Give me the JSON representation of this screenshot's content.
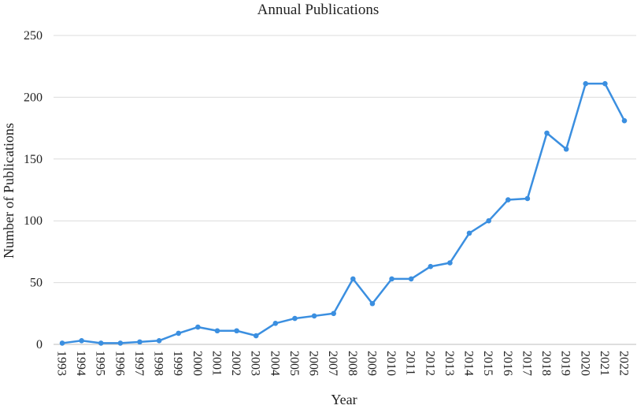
{
  "chart_data": {
    "type": "line",
    "title": "Annual Publications",
    "xlabel": "Year",
    "ylabel": "Number of Publications",
    "ylim": [
      0,
      250
    ],
    "yticks": [
      0,
      50,
      100,
      150,
      200,
      250
    ],
    "grid": true,
    "x": [
      "1993",
      "1994",
      "1995",
      "1996",
      "1997",
      "1998",
      "1999",
      "2000",
      "2001",
      "2002",
      "2003",
      "2004",
      "2005",
      "2006",
      "2007",
      "2008",
      "2009",
      "2010",
      "2011",
      "2012",
      "2013",
      "2014",
      "2015",
      "2016",
      "2017",
      "2018",
      "2019",
      "2020",
      "2021",
      "2022"
    ],
    "series": [
      {
        "color": "#3b8fe0",
        "values": [
          1,
          3,
          1,
          1,
          2,
          3,
          9,
          14,
          11,
          11,
          7,
          17,
          21,
          23,
          25,
          53,
          33,
          53,
          53,
          63,
          66,
          90,
          100,
          117,
          118,
          171,
          158,
          211,
          211,
          181
        ]
      }
    ]
  }
}
